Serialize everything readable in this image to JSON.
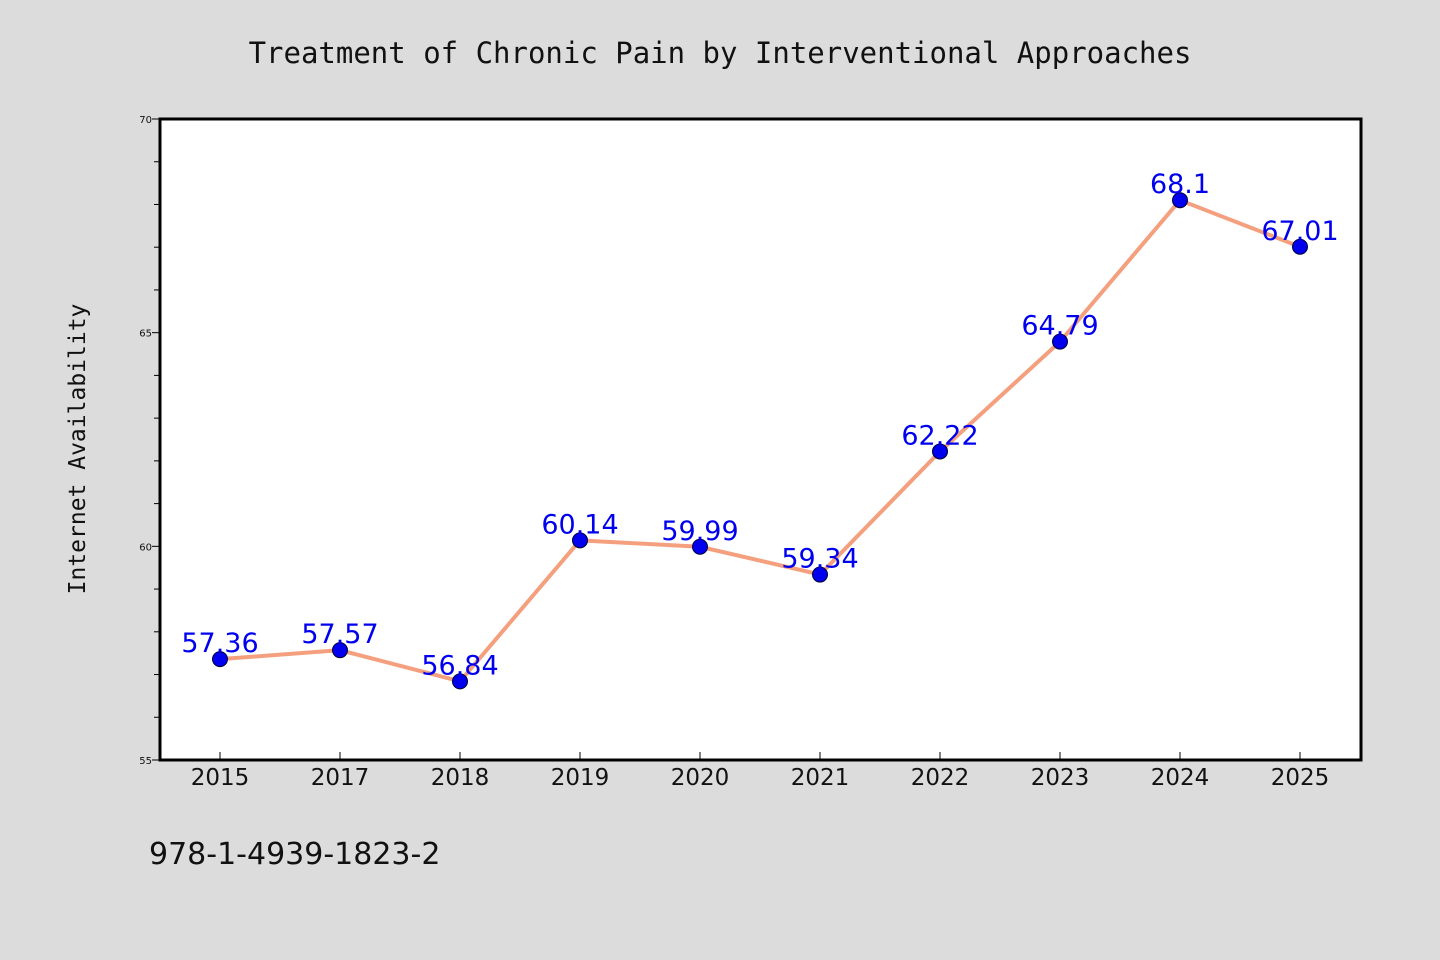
{
  "chart_data": {
    "type": "line",
    "title": "Treatment of Chronic Pain by Interventional Approaches",
    "xlabel": "",
    "ylabel": "Internet Availability",
    "categories": [
      "2015",
      "2017",
      "2018",
      "2019",
      "2020",
      "2021",
      "2022",
      "2023",
      "2024",
      "2025"
    ],
    "series": [
      {
        "values": [
          57.36,
          57.57,
          56.84,
          60.14,
          59.99,
          59.34,
          62.22,
          64.79,
          68.1,
          67.01
        ],
        "data_labels": [
          "57.36",
          "57.57",
          "56.84",
          "60.14",
          "59.99",
          "59.34",
          "62.22",
          "64.79",
          "68.1",
          "67.01"
        ]
      }
    ],
    "ylim": [
      55,
      70
    ],
    "y_major_ticks": [
      55,
      60,
      65,
      70
    ],
    "y_minor_step": 1,
    "grid": false,
    "legend": "none",
    "colors": {
      "figure_background": "#dcdcdc",
      "plot_background": "#ffffff",
      "line": "#f4a07f",
      "marker": "#0000ee",
      "data_label": "#0000ee",
      "text": "#111111"
    }
  },
  "footer": {
    "isbn": "978-1-4939-1823-2"
  }
}
